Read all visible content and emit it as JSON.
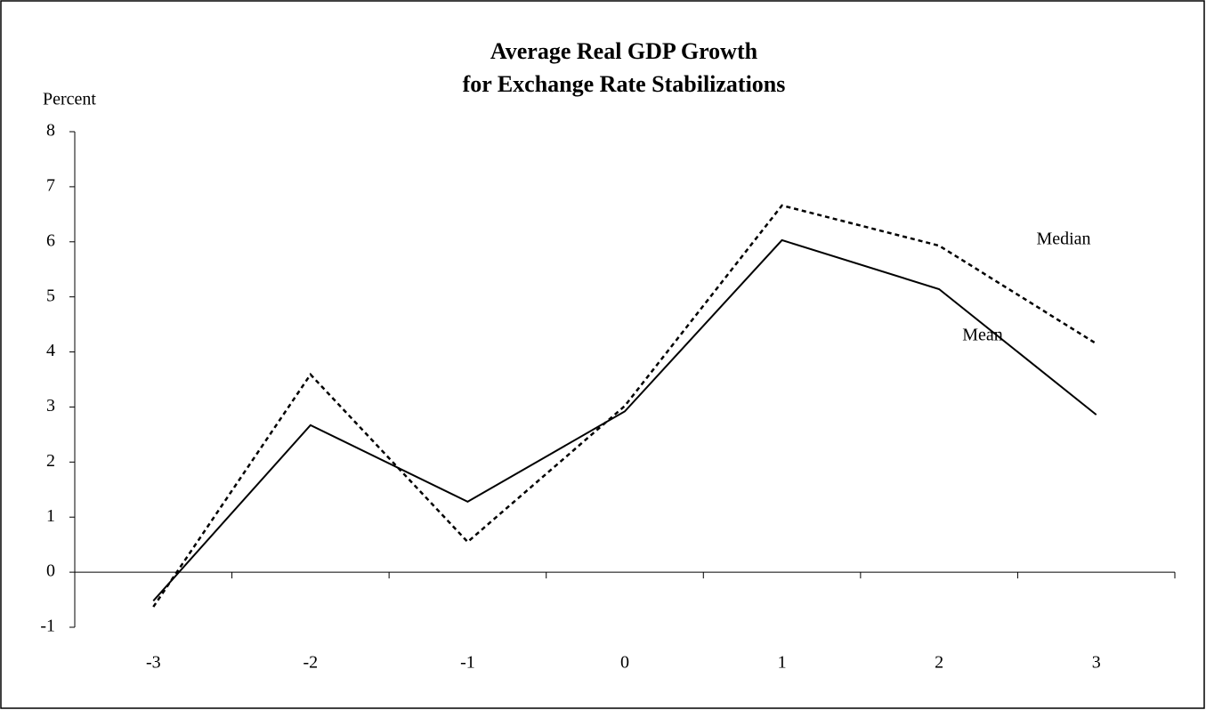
{
  "chart_data": {
    "type": "line",
    "title": [
      "Average Real GDP Growth",
      "for Exchange Rate Stabilizations"
    ],
    "y_label": "Percent",
    "categories": [
      "-3",
      "-2",
      "-1",
      "0",
      "1",
      "2",
      "3"
    ],
    "series": [
      {
        "name": "Mean",
        "color": "#000000",
        "dash": false,
        "values": [
          -0.52,
          2.67,
          1.28,
          2.92,
          6.03,
          5.14,
          2.86
        ]
      },
      {
        "name": "Median",
        "color": "#000000",
        "dash": true,
        "values": [
          -0.63,
          3.59,
          0.55,
          3.02,
          6.66,
          5.93,
          4.15
        ]
      }
    ],
    "ylim": [
      -1,
      8
    ],
    "yticks": [
      -1,
      0,
      1,
      2,
      3,
      4,
      5,
      6,
      7,
      8
    ],
    "grid": false
  }
}
